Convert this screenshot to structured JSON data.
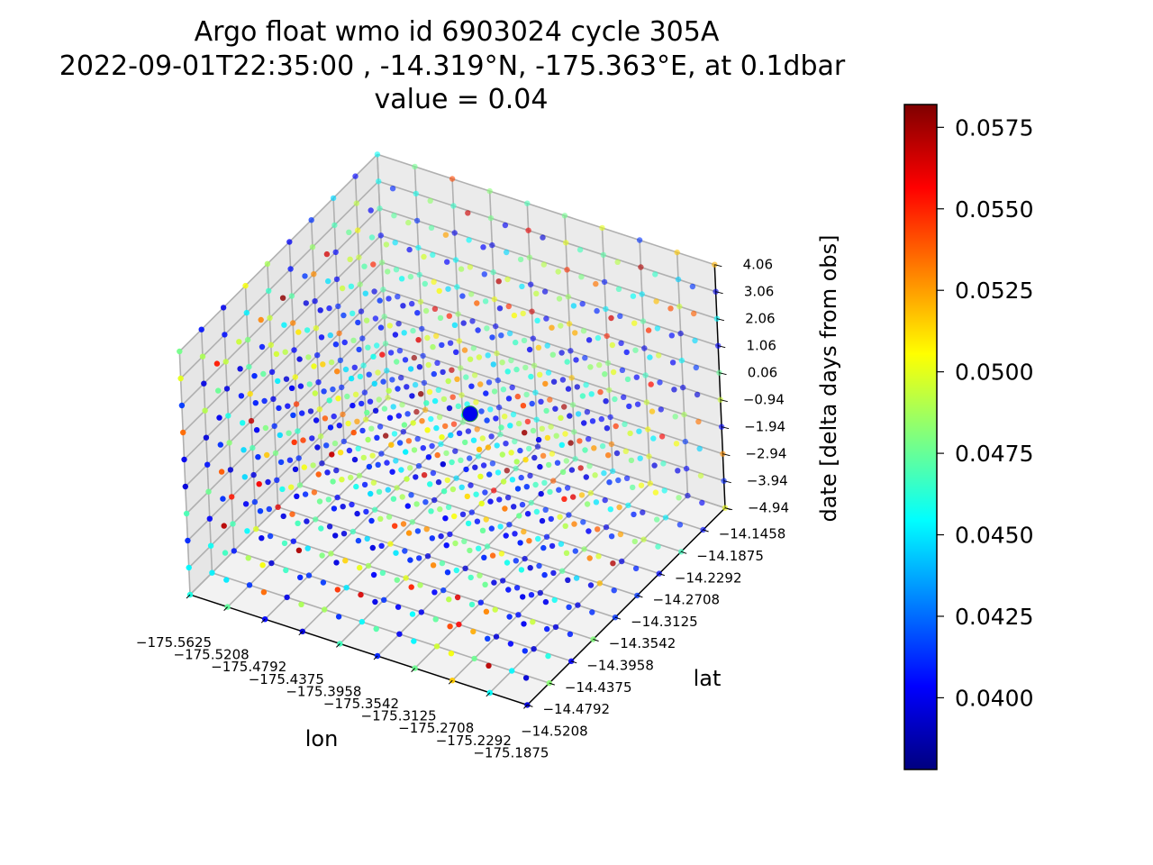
{
  "chart_data": {
    "type": "scatter",
    "projection": "3d",
    "title": [
      "Argo float wmo id 6903024 cycle 305A",
      "2022-09-01T22:35:00 , -14.319°N, -175.363°E, at 0.1dbar",
      "value = 0.04"
    ],
    "xlabel": "lon",
    "ylabel": "lat",
    "zlabel": "date [delta days from obs]",
    "x_ticks": [
      "−175.5625",
      "−175.5208",
      "−175.4792",
      "−175.4375",
      "−175.3958",
      "−175.3542",
      "−175.3125",
      "−175.2708",
      "−175.2292",
      "−175.1875"
    ],
    "y_ticks": [
      "−14.5208",
      "−14.4792",
      "−14.4375",
      "−14.3958",
      "−14.3542",
      "−14.3125",
      "−14.2708",
      "−14.2292",
      "−14.1875",
      "−14.1458"
    ],
    "z_ticks": [
      "−4.94",
      "−3.94",
      "−2.94",
      "−1.94",
      "−0.94",
      "0.06",
      "1.06",
      "2.06",
      "3.06",
      "4.06"
    ],
    "x_values": [
      -175.5625,
      -175.5208,
      -175.4792,
      -175.4375,
      -175.3958,
      -175.3542,
      -175.3125,
      -175.2708,
      -175.2292,
      -175.1875
    ],
    "y_values": [
      -14.5208,
      -14.4792,
      -14.4375,
      -14.3958,
      -14.3542,
      -14.3125,
      -14.2708,
      -14.2292,
      -14.1875,
      -14.1458
    ],
    "z_values": [
      -4.94,
      -3.94,
      -2.94,
      -1.94,
      -0.94,
      0.06,
      1.06,
      2.06,
      3.06,
      4.06
    ],
    "xlim": [
      -175.5625,
      -175.1875
    ],
    "ylim": [
      -14.5208,
      -14.1458
    ],
    "zlim": [
      -4.94,
      4.06
    ],
    "grid": true,
    "colormap": "jet",
    "colorbar": {
      "range": [
        0.0378,
        0.0582
      ],
      "ticks": [
        "0.0400",
        "0.0425",
        "0.0450",
        "0.0475",
        "0.0500",
        "0.0525",
        "0.0550",
        "0.0575"
      ],
      "tick_values": [
        0.04,
        0.0425,
        0.045,
        0.0475,
        0.05,
        0.0525,
        0.055,
        0.0575
      ]
    },
    "observation": {
      "lon": -175.363,
      "lat": -14.319,
      "date": 0.0,
      "value": 0.04
    },
    "value_grid_note": "",
    "value_seed": 6903024
  }
}
